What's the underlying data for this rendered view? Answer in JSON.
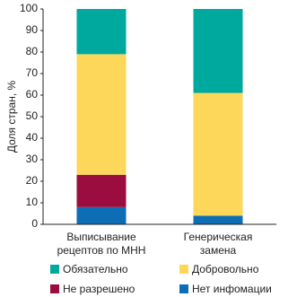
{
  "chart_data": {
    "type": "stacked_bar",
    "y_label": "Доля стран, %",
    "categories": [
      "Выписывание\nрецептов по МНН",
      "Генерическая\nзамена"
    ],
    "series": [
      {
        "name": "Обязательно",
        "color": "#00a99d",
        "values": [
          21,
          39
        ]
      },
      {
        "name": "Добровольно",
        "color": "#fcd75a",
        "values": [
          56,
          57
        ]
      },
      {
        "name": "Не разрешено",
        "color": "#9b0d3e",
        "values": [
          15,
          0
        ]
      },
      {
        "name": "Нет инфомации",
        "color": "#0d6eb5",
        "values": [
          8,
          4
        ]
      }
    ],
    "ylim": [
      0,
      100
    ],
    "yticks": [
      0,
      10,
      20,
      30,
      40,
      50,
      60,
      70,
      80,
      90,
      100
    ]
  }
}
